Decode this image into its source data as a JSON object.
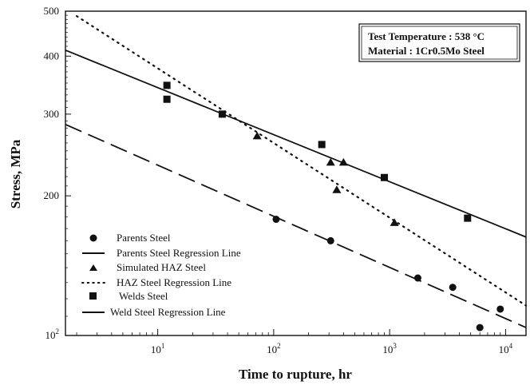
{
  "chart_data": {
    "type": "scatter",
    "xscale": "log",
    "yscale": "log",
    "xlim": [
      1.6,
      15000
    ],
    "ylim": [
      100,
      500
    ],
    "xlabel": "Time to rupture, hr",
    "ylabel": "Stress, MPa",
    "x_ticks": [
      {
        "value": 10,
        "base": "10",
        "exp": "1"
      },
      {
        "value": 100,
        "base": "10",
        "exp": "2"
      },
      {
        "value": 1000,
        "base": "10",
        "exp": "3"
      },
      {
        "value": 10000,
        "base": "10",
        "exp": "4"
      }
    ],
    "y_ticks": [
      {
        "value": 100,
        "base": "10",
        "exp": "2"
      },
      {
        "value": 200,
        "label": "200"
      },
      {
        "value": 300,
        "label": "300"
      },
      {
        "value": 400,
        "label": "400"
      },
      {
        "value": 500,
        "label": "500"
      }
    ],
    "annotation": [
      "Test Temperature : 538 °C",
      "Material : 1Cr0.5Mo Steel"
    ],
    "legend_position": "bottom-left",
    "series": [
      {
        "name": "Parents Steel",
        "kind": "points",
        "marker": "circle",
        "x": [
          105,
          310,
          1750,
          3500,
          6000,
          9000
        ],
        "y": [
          178,
          160,
          133,
          127,
          104,
          114
        ]
      },
      {
        "name": "Parents Steel Regression Line",
        "kind": "line",
        "style": "dashed",
        "x": [
          1.6,
          15000
        ],
        "y": [
          285,
          104
        ]
      },
      {
        "name": "Simulated HAZ Steel",
        "kind": "points",
        "marker": "triangle",
        "x": [
          72,
          310,
          400,
          350,
          1100
        ],
        "y": [
          269,
          236,
          236,
          206,
          175
        ]
      },
      {
        "name": "HAZ Steel Regression Line",
        "kind": "line",
        "style": "dotted",
        "x": [
          2,
          15000
        ],
        "y": [
          488,
          116
        ]
      },
      {
        "name": "Welds Steel",
        "kind": "points",
        "marker": "square",
        "x": [
          12,
          12,
          36,
          260,
          900,
          4700
        ],
        "y": [
          346,
          323,
          300,
          258,
          219,
          179
        ]
      },
      {
        "name": "Weld Steel Regression Line",
        "kind": "line",
        "style": "solid",
        "x": [
          1.6,
          15000
        ],
        "y": [
          412,
          163
        ]
      }
    ]
  }
}
